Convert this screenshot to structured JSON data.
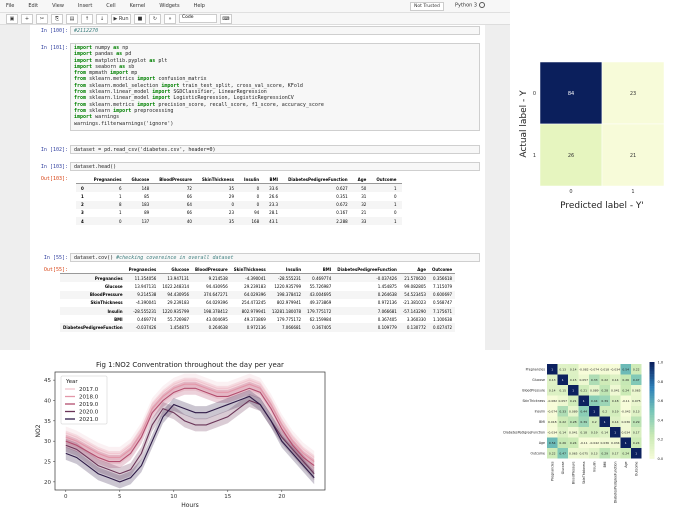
{
  "menu": {
    "items": [
      "File",
      "Edit",
      "View",
      "Insert",
      "Cell",
      "Kernel",
      "Widgets",
      "Help"
    ],
    "trust": "Not Trusted",
    "kernel": "Python 3"
  },
  "toolbar": {
    "run_label": "▶ Run",
    "cell_type": "Code"
  },
  "cells": {
    "c100": {
      "prompt": "In [100]:",
      "code": "#2112270"
    },
    "c101": {
      "prompt": "In [101]:",
      "lines": [
        "import numpy as np",
        "import pandas as pd",
        "import matplotlib.pyplot as plt",
        "import seaborn as sb",
        "from mpmath import mp",
        "from sklearn.metrics import confusion_matrix",
        "from sklearn.model_selection import train_test_split, cross_val_score, KFold",
        "from sklearn.linear_model import SGDClassifier, LinearRegression",
        "from sklearn.linear_model import LogisticRegression, LogisticRegressionCV",
        "from sklearn.metrics import precision_score, recall_score, f1_score, accuracy_score",
        "from sklearn import preprocessing",
        "import warnings",
        "warnings.filterwarnings('ignore')"
      ]
    },
    "c102": {
      "prompt": "In [102]:",
      "code": "dataset = pd.read_csv('diabetes.csv', header=0)"
    },
    "c103": {
      "prompt": "In [103]:",
      "code": "dataset.head()",
      "out_prompt": "Out[103]:"
    },
    "c55": {
      "prompt": "In [55]:",
      "code": "dataset.cov() #checking covereince in overall dataset",
      "out_prompt": "Out[55]:"
    }
  },
  "head_table": {
    "columns": [
      "",
      "Pregnancies",
      "Glucose",
      "BloodPressure",
      "SkinThickness",
      "Insulin",
      "BMI",
      "DiabetesPedigreeFunction",
      "Age",
      "Outcome"
    ],
    "rows": [
      [
        "0",
        "6",
        "148",
        "72",
        "35",
        "0",
        "33.6",
        "0.627",
        "50",
        "1"
      ],
      [
        "1",
        "1",
        "85",
        "66",
        "29",
        "0",
        "26.6",
        "0.351",
        "31",
        "0"
      ],
      [
        "2",
        "8",
        "183",
        "64",
        "0",
        "0",
        "23.3",
        "0.672",
        "32",
        "1"
      ],
      [
        "3",
        "1",
        "89",
        "66",
        "23",
        "94",
        "28.1",
        "0.167",
        "21",
        "0"
      ],
      [
        "4",
        "0",
        "137",
        "40",
        "35",
        "168",
        "43.1",
        "2.288",
        "33",
        "1"
      ]
    ]
  },
  "cov_table": {
    "columns": [
      "",
      "Pregnancies",
      "Glucose",
      "BloodPressure",
      "SkinThickness",
      "Insulin",
      "BMI",
      "DiabetesPedigreeFunction",
      "Age",
      "Outcome"
    ],
    "rows": [
      [
        "Pregnancies",
        "11.354056",
        "13.947131",
        "9.214538",
        "-4.390041",
        "-28.555231",
        "0.469774",
        "-0.037426",
        "21.570620",
        "0.356618"
      ],
      [
        "Glucose",
        "13.947131",
        "1022.248314",
        "94.430956",
        "29.239183",
        "1220.935799",
        "55.726987",
        "1.454875",
        "99.082805",
        "7.115079"
      ],
      [
        "BloodPressure",
        "9.214538",
        "94.430956",
        "374.647271",
        "64.029396",
        "198.378412",
        "43.004695",
        "0.264638",
        "54.523453",
        "0.600697"
      ],
      [
        "SkinThickness",
        "-4.390041",
        "29.239183",
        "64.029396",
        "254.473245",
        "802.979941",
        "49.373869",
        "0.972136",
        "-21.381023",
        "0.568747"
      ],
      [
        "Insulin",
        "-28.555231",
        "1220.935799",
        "198.378412",
        "802.979941",
        "13281.180078",
        "179.775172",
        "7.066681",
        "-57.143290",
        "7.175671"
      ],
      [
        "BMI",
        "0.469774",
        "55.726987",
        "43.004695",
        "49.373869",
        "179.775172",
        "62.159984",
        "0.367405",
        "3.360330",
        "1.100638"
      ],
      [
        "DiabetesPedigreeFunction",
        "-0.037426",
        "1.454875",
        "0.264638",
        "0.972136",
        "7.066681",
        "0.367405",
        "0.109779",
        "0.130772",
        "0.027472"
      ]
    ]
  },
  "confusion_matrix": {
    "values": [
      [
        84,
        23
      ],
      [
        26,
        21
      ]
    ],
    "xlabel": "Predicted label - Y'",
    "ylabel": "Actual label - Y",
    "x_ticks": [
      "0",
      "1"
    ],
    "y_ticks": [
      "0",
      "1"
    ],
    "colors": {
      "high": "#0b1f5c",
      "low": "#f7fbd9",
      "mid": "#e6f5bf"
    }
  },
  "no2_chart": {
    "title": "Fig 1:NO2 Conventration throughout the day per year",
    "ylabel": "NO2",
    "xlabel": "Hours",
    "legend_title": "Year",
    "x_ticks": [
      0,
      5,
      10,
      15,
      20
    ],
    "y_ticks": [
      20,
      25,
      30,
      35,
      40,
      45
    ],
    "ylim": [
      18,
      47
    ],
    "xlim": [
      -1,
      24
    ],
    "series": [
      {
        "name": "2017.0",
        "color": "#f1c6cf",
        "values": [
          32,
          31,
          29.5,
          28,
          27,
          27,
          29,
          33,
          39,
          42,
          44,
          45,
          45,
          44,
          43,
          43,
          44,
          45,
          44,
          40,
          35,
          31,
          28,
          26
        ]
      },
      {
        "name": "2018.0",
        "color": "#e396a8",
        "values": [
          31,
          30,
          28.5,
          27,
          26,
          26,
          28,
          32,
          38,
          41,
          43,
          44,
          44,
          43,
          42,
          42,
          43,
          44,
          43,
          39,
          34,
          30,
          27,
          25
        ]
      },
      {
        "name": "2019.0",
        "color": "#b34d6e",
        "values": [
          30,
          29,
          27.5,
          26,
          25,
          25,
          27,
          31,
          37,
          40,
          42,
          43,
          43,
          42,
          41,
          41,
          42,
          43,
          42,
          38,
          33,
          29,
          26,
          24
        ]
      },
      {
        "name": "2020.0",
        "color": "#6b3558",
        "values": [
          29,
          28,
          26,
          24,
          23,
          22,
          23,
          27,
          34,
          38,
          37,
          35,
          34,
          34,
          35,
          36,
          38,
          40,
          39,
          35,
          31,
          28,
          25,
          22
        ]
      },
      {
        "name": "2021.0",
        "color": "#2e1a47",
        "values": [
          27,
          26,
          24,
          22,
          21,
          20,
          21,
          24,
          30,
          36,
          39,
          38,
          37,
          37,
          38,
          39,
          40,
          41,
          39,
          35,
          30,
          27,
          24,
          21
        ]
      }
    ]
  },
  "corr_heatmap": {
    "labels": [
      "Pregnancies",
      "Glucose",
      "BloodPressure",
      "SkinThickness",
      "Insulin",
      "BMI",
      "DiabetesPedigreeFunction",
      "Age",
      "Outcome"
    ],
    "cells": [
      [
        "1",
        "0.13",
        "0.14",
        "-0.082",
        "-0.074",
        "0.018",
        "-0.034",
        "0.54",
        "0.22"
      ],
      [
        "0.13",
        "1",
        "0.15",
        "0.057",
        "0.33",
        "0.22",
        "0.14",
        "0.26",
        "0.47"
      ],
      [
        "0.14",
        "0.15",
        "1",
        "0.21",
        "0.089",
        "0.28",
        "0.041",
        "0.24",
        "0.065"
      ],
      [
        "-0.082",
        "0.057",
        "0.21",
        "1",
        "0.44",
        "0.39",
        "0.18",
        "-0.11",
        "0.075"
      ],
      [
        "-0.074",
        "0.33",
        "0.089",
        "0.44",
        "1",
        "0.2",
        "0.19",
        "-0.042",
        "0.13"
      ],
      [
        "0.018",
        "0.22",
        "0.28",
        "0.39",
        "0.2",
        "1",
        "0.14",
        "0.036",
        "0.29"
      ],
      [
        "-0.034",
        "0.14",
        "0.041",
        "0.18",
        "0.19",
        "0.14",
        "1",
        "0.034",
        "0.17"
      ],
      [
        "0.54",
        "0.26",
        "0.24",
        "-0.11",
        "-0.042",
        "0.036",
        "0.034",
        "1",
        "0.24"
      ],
      [
        "0.22",
        "0.47",
        "0.065",
        "0.075",
        "0.13",
        "0.29",
        "0.17",
        "0.24",
        "1"
      ]
    ],
    "colorbar_ticks": [
      "1.0",
      "0.8",
      "0.6",
      "0.4",
      "0.2",
      "0.0"
    ]
  }
}
